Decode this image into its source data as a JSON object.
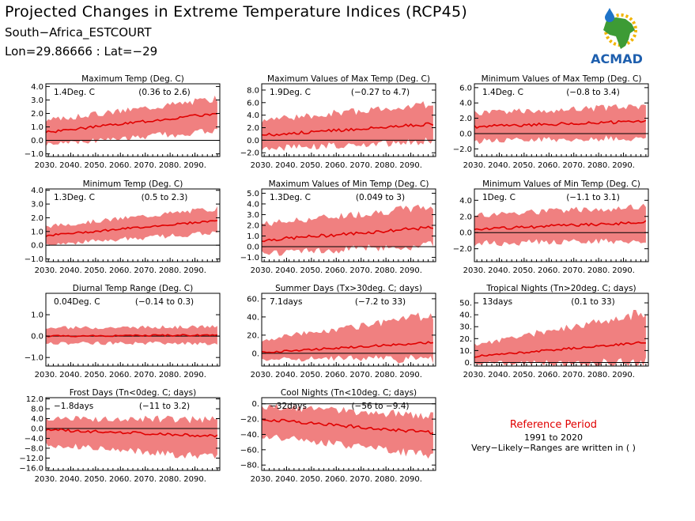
{
  "header": {
    "title": "Projected Changes in Extreme Temperature Indices (RCP45)",
    "location": "South−Africa_ESTCOURT",
    "coords": "Lon=29.86666 : Lat=−29"
  },
  "logo": {
    "text": "ACMAD",
    "colors": {
      "africa": "#3d9b35",
      "drop": "#1e73c8",
      "sun": "#f2b400",
      "text": "#1e5fae"
    }
  },
  "reference": {
    "title": "Reference Period",
    "years": "1991 to 2020",
    "note": "Very−Likely−Ranges are written in ( )"
  },
  "colors": {
    "band": "#f08080",
    "line": "#e00000",
    "zero": "#000000"
  },
  "chart_data": [
    {
      "type": "area",
      "title": "Maximum Temp (Deg. C)",
      "change": "1.4Deg. C",
      "range": "(0.36 to 2.6)",
      "ylim": [
        -1.2,
        4.2
      ],
      "yticks": [
        -1.0,
        0.0,
        1.0,
        2.0,
        3.0,
        4.0
      ],
      "ytick_labels": [
        "−1.0",
        "0.0",
        "1.0",
        "2.0",
        "3.0",
        "4.0"
      ],
      "x_start": 2030,
      "x_end": 2099,
      "xticks": [
        2030,
        2040,
        2050,
        2060,
        2070,
        2080,
        2090
      ],
      "xtick_labels": [
        "2030.",
        "2040.",
        "2050.",
        "2060.",
        "2070.",
        "2080.",
        "2090."
      ],
      "median_start": 0.6,
      "median_end": 2.0,
      "low_start": -0.2,
      "low_end": 0.8,
      "high_start": 1.4,
      "high_end": 3.0
    },
    {
      "type": "area",
      "title": "Maximum Values of Max Temp (Deg. C)",
      "change": "1.9Deg. C",
      "range": "(−0.27 to 4.7)",
      "ylim": [
        -2.6,
        9.0
      ],
      "yticks": [
        -2.0,
        0.0,
        2.0,
        4.0,
        6.0,
        8.0
      ],
      "ytick_labels": [
        "−2.0",
        "0.0",
        "2.0",
        "4.0",
        "6.0",
        "8.0"
      ],
      "x_start": 2030,
      "x_end": 2099,
      "xticks": [
        2030,
        2040,
        2050,
        2060,
        2070,
        2080,
        2090
      ],
      "xtick_labels": [
        "2030.",
        "2040.",
        "2050.",
        "2060.",
        "2070.",
        "2080.",
        "2090."
      ],
      "median_start": 0.8,
      "median_end": 2.6,
      "low_start": -1.2,
      "low_end": 0.2,
      "high_start": 3.0,
      "high_end": 5.5
    },
    {
      "type": "area",
      "title": "Minimum Values of Max Temp (Deg. C)",
      "change": "1.4Deg. C",
      "range": "(−0.8 to 3.4)",
      "ylim": [
        -3.0,
        6.5
      ],
      "yticks": [
        -2.0,
        0.0,
        2.0,
        4.0,
        6.0
      ],
      "ytick_labels": [
        "−2.0",
        "0.0",
        "2.0",
        "4.0",
        "6.0"
      ],
      "x_start": 2030,
      "x_end": 2099,
      "xticks": [
        2030,
        2040,
        2050,
        2060,
        2070,
        2080,
        2090
      ],
      "xtick_labels": [
        "2030.",
        "2040.",
        "2050.",
        "2060.",
        "2070.",
        "2080.",
        "2090."
      ],
      "median_start": 0.9,
      "median_end": 1.6,
      "low_start": -0.8,
      "low_end": -0.4,
      "high_start": 2.5,
      "high_end": 3.4
    },
    {
      "type": "area",
      "title": "Minimum Temp (Deg. C)",
      "change": "1.3Deg. C",
      "range": "(0.5 to 2.3)",
      "ylim": [
        -1.2,
        4.1
      ],
      "yticks": [
        -1.0,
        0.0,
        1.0,
        2.0,
        3.0,
        4.0
      ],
      "ytick_labels": [
        "−1.0",
        "0.0",
        "1.0",
        "2.0",
        "3.0",
        "4.0"
      ],
      "x_start": 2030,
      "x_end": 2099,
      "xticks": [
        2030,
        2040,
        2050,
        2060,
        2070,
        2080,
        2090
      ],
      "xtick_labels": [
        "2030.",
        "2040.",
        "2050.",
        "2060.",
        "2070.",
        "2080.",
        "2090."
      ],
      "median_start": 0.7,
      "median_end": 1.8,
      "low_start": 0.1,
      "low_end": 1.0,
      "high_start": 1.3,
      "high_end": 2.6
    },
    {
      "type": "area",
      "title": "Maximum Values of Min Temp (Deg. C)",
      "change": "1.3Deg. C",
      "range": "(0.049 to 3)",
      "ylim": [
        -1.4,
        5.4
      ],
      "yticks": [
        -1.0,
        0.0,
        1.0,
        2.0,
        3.0,
        4.0,
        5.0
      ],
      "ytick_labels": [
        "−1.0",
        "0.0",
        "1.0",
        "2.0",
        "3.0",
        "4.0",
        "5.0"
      ],
      "x_start": 2030,
      "x_end": 2099,
      "xticks": [
        2030,
        2040,
        2050,
        2060,
        2070,
        2080,
        2090
      ],
      "xtick_labels": [
        "2030.",
        "2040.",
        "2050.",
        "2060.",
        "2070.",
        "2080.",
        "2090."
      ],
      "median_start": 0.6,
      "median_end": 1.8,
      "low_start": -0.5,
      "low_end": 0.3,
      "high_start": 2.0,
      "high_end": 3.6
    },
    {
      "type": "area",
      "title": "Minimum Values of Min Temp (Deg. C)",
      "change": "1Deg. C",
      "range": "(−1.1 to 3.1)",
      "ylim": [
        -3.6,
        5.4
      ],
      "yticks": [
        -2.0,
        0.0,
        2.0,
        4.0
      ],
      "ytick_labels": [
        "−2.0",
        "0.0",
        "2.0",
        "4.0"
      ],
      "x_start": 2030,
      "x_end": 2099,
      "xticks": [
        2030,
        2040,
        2050,
        2060,
        2070,
        2080,
        2090
      ],
      "xtick_labels": [
        "2030.",
        "2040.",
        "2050.",
        "2060.",
        "2070.",
        "2080.",
        "2090."
      ],
      "median_start": 0.4,
      "median_end": 1.3,
      "low_start": -1.2,
      "low_end": -0.8,
      "high_start": 2.0,
      "high_end": 3.0
    },
    {
      "type": "area",
      "title": "Diurnal Temp Range (Deg. C)",
      "change": "0.04Deg. C",
      "range": "(−0.14 to 0.3)",
      "ylim": [
        -1.4,
        2.0
      ],
      "yticks": [
        -1.0,
        0.0,
        1.0
      ],
      "ytick_labels": [
        "−1.0",
        "0.0",
        "1.0"
      ],
      "x_start": 2030,
      "x_end": 2099,
      "xticks": [
        2030,
        2040,
        2050,
        2060,
        2070,
        2080,
        2090
      ],
      "xtick_labels": [
        "2030.",
        "2040.",
        "2050.",
        "2060.",
        "2070.",
        "2080.",
        "2090."
      ],
      "median_start": 0.0,
      "median_end": 0.05,
      "low_start": -0.3,
      "low_end": -0.3,
      "high_start": 0.35,
      "high_end": 0.4
    },
    {
      "type": "area",
      "title": "Summer Days (Tx>30deg. C; days)",
      "change": "7.1days",
      "range": "(−7.2 to 33)",
      "ylim": [
        -14,
        66
      ],
      "yticks": [
        0,
        20,
        40,
        60
      ],
      "ytick_labels": [
        "0.",
        "20.",
        "40.",
        "60."
      ],
      "x_start": 2030,
      "x_end": 2099,
      "xticks": [
        2030,
        2040,
        2050,
        2060,
        2070,
        2080,
        2090
      ],
      "xtick_labels": [
        "2030.",
        "2040.",
        "2050.",
        "2060.",
        "2070.",
        "2080.",
        "2090."
      ],
      "median_start": 1,
      "median_end": 12,
      "low_start": -5,
      "low_end": -4,
      "high_start": 14,
      "high_end": 40
    },
    {
      "type": "area",
      "title": "Tropical Nights (Tn>20deg. C; days)",
      "change": "13days",
      "range": "(0.1 to 33)",
      "ylim": [
        -3,
        58
      ],
      "yticks": [
        0,
        10,
        20,
        30,
        40,
        50
      ],
      "ytick_labels": [
        "0.",
        "10.",
        "20.",
        "30.",
        "40.",
        "50."
      ],
      "x_start": 2030,
      "x_end": 2099,
      "xticks": [
        2030,
        2040,
        2050,
        2060,
        2070,
        2080,
        2090
      ],
      "xtick_labels": [
        "2030.",
        "2040.",
        "2050.",
        "2060.",
        "2070.",
        "2080.",
        "2090."
      ],
      "median_start": 5,
      "median_end": 17,
      "low_start": 0,
      "low_end": 2,
      "high_start": 14,
      "high_end": 40
    },
    {
      "type": "area",
      "title": "Frost Days (Tn<0deg. C; days)",
      "change": "−1.8days",
      "range": "(−11 to 3.2)",
      "ylim": [
        -17,
        12.5
      ],
      "yticks": [
        -16,
        -12,
        -8,
        -4,
        0,
        4,
        8,
        12
      ],
      "ytick_labels": [
        "−16.0",
        "−12.0",
        "−8.0",
        "−4.0",
        "0.0",
        "4.0",
        "8.0",
        "12.0"
      ],
      "x_start": 2030,
      "x_end": 2099,
      "xticks": [
        2030,
        2040,
        2050,
        2060,
        2070,
        2080,
        2090
      ],
      "xtick_labels": [
        "2030.",
        "2040.",
        "2050.",
        "2060.",
        "2070.",
        "2080.",
        "2090."
      ],
      "median_start": -0.5,
      "median_end": -3.0,
      "low_start": -6,
      "low_end": -11,
      "high_start": 3.5,
      "high_end": 3.0
    },
    {
      "type": "area",
      "title": "Cool Nights (Tn<10deg. C; days)",
      "change": "−32days",
      "range": "(−56 to −9.4)",
      "ylim": [
        -87,
        8
      ],
      "yticks": [
        -80,
        -60,
        -40,
        -20,
        0
      ],
      "ytick_labels": [
        "−80.",
        "−60.",
        "−40.",
        "−20.",
        "0."
      ],
      "x_start": 2030,
      "x_end": 2099,
      "xticks": [
        2030,
        2040,
        2050,
        2060,
        2070,
        2080,
        2090
      ],
      "xtick_labels": [
        "2030.",
        "2040.",
        "2050.",
        "2060.",
        "2070.",
        "2080.",
        "2090."
      ],
      "median_start": -20,
      "median_end": -38,
      "low_start": -40,
      "low_end": -65,
      "high_start": -5,
      "high_end": -18
    }
  ]
}
